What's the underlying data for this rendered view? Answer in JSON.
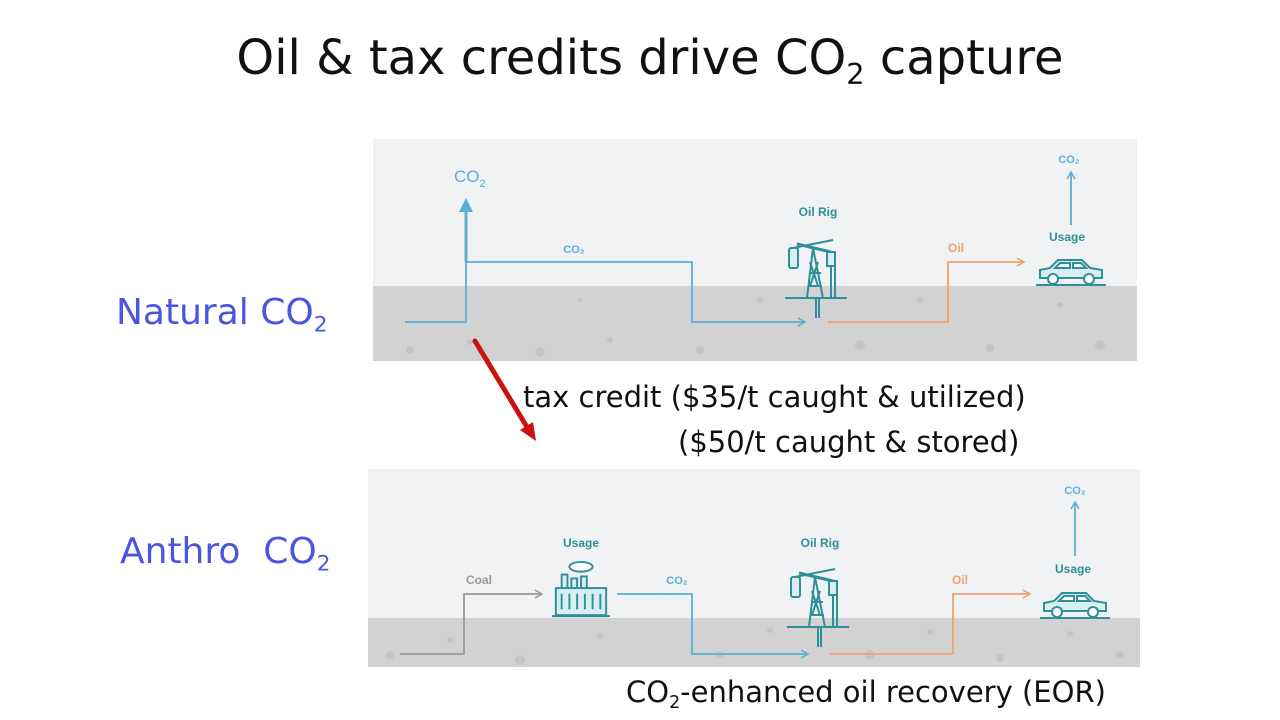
{
  "slide": {
    "title_main": "Oil & tax credits drive CO",
    "title_sub": "2",
    "title_end": " capture"
  },
  "rows": {
    "natural": {
      "label_main": "Natural CO",
      "label_sub": "2",
      "left_co2_main": "CO",
      "left_co2_sub": "2",
      "co2_flow": "CO₂",
      "rig": "Oil Rig",
      "oil": "Oil",
      "usage": "Usage",
      "emission": "CO₂"
    },
    "anthro": {
      "label_main": "Anthro  CO",
      "label_sub": "2",
      "coal": "Coal",
      "plant_usage": "Usage",
      "co2_flow": "CO₂",
      "rig": "Oil Rig",
      "oil": "Oil",
      "usage": "Usage",
      "emission": "CO₂"
    }
  },
  "tax_credit": {
    "line1": "tax credit ($35/t caught & utilized)",
    "line2": "($50/t caught & stored)"
  },
  "eor": {
    "main": "CO",
    "sub": "2",
    "rest": "-enhanced oil recovery (EOR)"
  },
  "colors": {
    "label_blue": "#4a55e0",
    "co2_blue": "#5aaed8",
    "oil_orange": "#f0a070",
    "teal": "#2f8f9a",
    "ground": "#d2d2d2",
    "sky": "#f1f2f3",
    "arrow_red": "#cc1111"
  }
}
